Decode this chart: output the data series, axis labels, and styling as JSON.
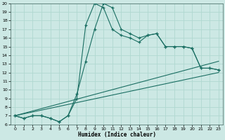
{
  "title": "",
  "xlabel": "Humidex (Indice chaleur)",
  "bg_color": "#cce8e4",
  "line_color": "#1a6e62",
  "grid_color": "#b0d8d0",
  "xlim": [
    -0.5,
    23.5
  ],
  "ylim": [
    6,
    20
  ],
  "xticks": [
    0,
    1,
    2,
    3,
    4,
    5,
    6,
    7,
    8,
    9,
    10,
    11,
    12,
    13,
    14,
    15,
    16,
    17,
    18,
    19,
    20,
    21,
    22,
    23
  ],
  "yticks": [
    6,
    7,
    8,
    9,
    10,
    11,
    12,
    13,
    14,
    15,
    16,
    17,
    18,
    19,
    20
  ],
  "line1_x": [
    0,
    1,
    2,
    3,
    4,
    5,
    6,
    7,
    8,
    9,
    10,
    11,
    12,
    13,
    14,
    15,
    16,
    17,
    18,
    19,
    20,
    21,
    22,
    23
  ],
  "line1_y": [
    7.0,
    6.7,
    7.0,
    7.0,
    6.7,
    6.3,
    7.0,
    9.5,
    13.3,
    17.0,
    20.0,
    19.5,
    17.0,
    16.5,
    16.0,
    16.3,
    16.5,
    15.0,
    15.0,
    15.0,
    14.8,
    12.5,
    12.5,
    12.3
  ],
  "line2_x": [
    0,
    1,
    2,
    3,
    4,
    5,
    6,
    7,
    8,
    9,
    10,
    11,
    12,
    13,
    14,
    15,
    16,
    17,
    18,
    19,
    20,
    21,
    22,
    23
  ],
  "line2_y": [
    7.0,
    6.7,
    7.0,
    7.0,
    6.7,
    6.3,
    7.0,
    9.0,
    17.5,
    20.0,
    19.5,
    17.0,
    16.3,
    16.0,
    15.5,
    16.3,
    16.5,
    15.0,
    15.0,
    15.0,
    14.8,
    12.5,
    12.5,
    12.3
  ],
  "line3_x": [
    0,
    23
  ],
  "line3_y": [
    7.0,
    13.3
  ],
  "line4_x": [
    0,
    23
  ],
  "line4_y": [
    7.0,
    12.0
  ]
}
